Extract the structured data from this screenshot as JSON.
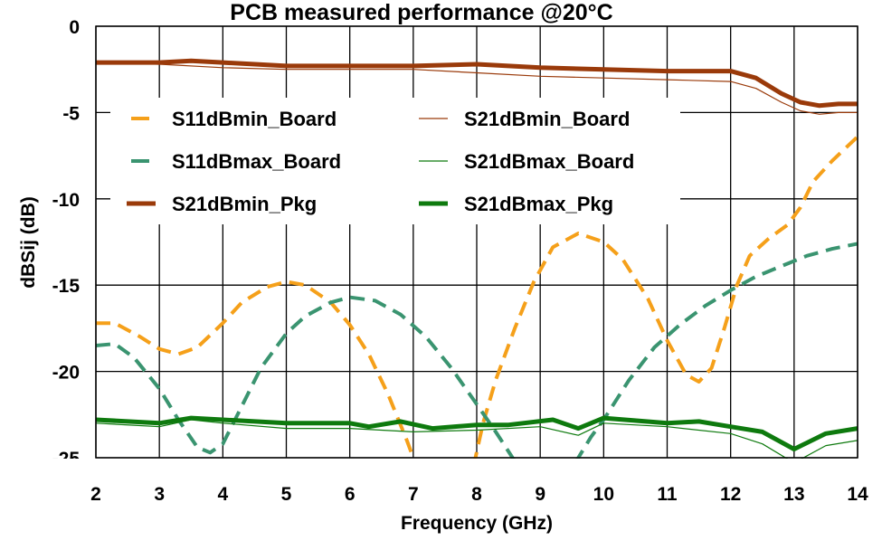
{
  "chart_data": {
    "type": "line",
    "title": "PCB measured performance @20°C",
    "xlabel": "Frequency (GHz)",
    "ylabel": "dBSij (dB)",
    "xlim": [
      2,
      14
    ],
    "ylim": [
      -25,
      0
    ],
    "x_ticks": [
      2,
      3,
      4,
      5,
      6,
      7,
      8,
      9,
      10,
      11,
      12,
      13,
      14
    ],
    "y_ticks": [
      0,
      -5,
      -10,
      -15,
      -20,
      -25
    ],
    "grid": true,
    "legend_position": "upper-left-inside, 2 columns",
    "series": [
      {
        "name": "S11dBmin_Board",
        "color": "#F5A01A",
        "style": "dashed",
        "width": 4,
        "segments": [
          [
            [
              2.0,
              -17.2
            ],
            [
              2.3,
              -17.2
            ],
            [
              2.7,
              -18.0
            ],
            [
              3.0,
              -18.7
            ],
            [
              3.3,
              -19.0
            ],
            [
              3.6,
              -18.6
            ],
            [
              4.0,
              -17.2
            ],
            [
              4.3,
              -16.0
            ],
            [
              4.7,
              -15.1
            ],
            [
              5.0,
              -14.8
            ],
            [
              5.3,
              -15.0
            ],
            [
              5.7,
              -16.0
            ],
            [
              6.0,
              -17.3
            ],
            [
              6.3,
              -19.0
            ],
            [
              6.6,
              -21.3
            ],
            [
              6.9,
              -24.0
            ],
            [
              7.05,
              -25.5
            ]
          ],
          [
            [
              7.95,
              -25.5
            ],
            [
              8.1,
              -23.0
            ],
            [
              8.3,
              -20.5
            ],
            [
              8.6,
              -17.5
            ],
            [
              8.9,
              -14.8
            ],
            [
              9.2,
              -12.8
            ],
            [
              9.6,
              -12.0
            ],
            [
              10.0,
              -12.5
            ],
            [
              10.3,
              -13.5
            ],
            [
              10.7,
              -15.8
            ],
            [
              11.0,
              -18.2
            ],
            [
              11.3,
              -20.2
            ],
            [
              11.5,
              -20.6
            ],
            [
              11.7,
              -19.8
            ],
            [
              11.9,
              -17.5
            ],
            [
              12.1,
              -15.0
            ],
            [
              12.3,
              -13.3
            ],
            [
              12.6,
              -12.3
            ],
            [
              12.9,
              -11.5
            ],
            [
              13.1,
              -10.5
            ],
            [
              13.3,
              -9.0
            ],
            [
              13.6,
              -7.8
            ],
            [
              14.0,
              -6.4
            ]
          ]
        ]
      },
      {
        "name": "S11dBmax_Board",
        "color": "#3A9470",
        "style": "dashed",
        "width": 4,
        "segments": [
          [
            [
              2.0,
              -18.5
            ],
            [
              2.3,
              -18.4
            ],
            [
              2.6,
              -19.2
            ],
            [
              3.0,
              -21.0
            ],
            [
              3.3,
              -22.8
            ],
            [
              3.6,
              -24.4
            ],
            [
              3.8,
              -24.7
            ],
            [
              4.0,
              -24.2
            ],
            [
              4.3,
              -22.0
            ],
            [
              4.6,
              -19.8
            ],
            [
              5.0,
              -17.8
            ],
            [
              5.3,
              -16.8
            ],
            [
              5.7,
              -16.0
            ],
            [
              6.0,
              -15.7
            ],
            [
              6.4,
              -15.9
            ],
            [
              6.8,
              -16.7
            ],
            [
              7.2,
              -18.0
            ],
            [
              7.6,
              -19.8
            ],
            [
              8.0,
              -21.9
            ],
            [
              8.3,
              -23.5
            ],
            [
              8.6,
              -25.2
            ]
          ],
          [
            [
              9.55,
              -25.3
            ],
            [
              9.8,
              -23.8
            ],
            [
              10.0,
              -22.8
            ],
            [
              10.4,
              -20.5
            ],
            [
              10.8,
              -18.6
            ],
            [
              11.2,
              -17.3
            ],
            [
              11.6,
              -16.2
            ],
            [
              12.0,
              -15.3
            ],
            [
              12.4,
              -14.5
            ],
            [
              12.8,
              -13.9
            ],
            [
              13.2,
              -13.3
            ],
            [
              13.6,
              -12.9
            ],
            [
              14.0,
              -12.6
            ]
          ]
        ]
      },
      {
        "name": "S21dBmin_Pkg",
        "color": "#9A3A0A",
        "style": "solid",
        "width": 5,
        "segments": [
          [
            [
              2.0,
              -2.1
            ],
            [
              3.0,
              -2.1
            ],
            [
              3.5,
              -2.0
            ],
            [
              4.0,
              -2.1
            ],
            [
              5.0,
              -2.3
            ],
            [
              6.0,
              -2.3
            ],
            [
              7.0,
              -2.3
            ],
            [
              8.0,
              -2.2
            ],
            [
              9.0,
              -2.4
            ],
            [
              10.0,
              -2.5
            ],
            [
              11.0,
              -2.6
            ],
            [
              12.0,
              -2.6
            ],
            [
              12.4,
              -3.0
            ],
            [
              12.8,
              -3.9
            ],
            [
              13.1,
              -4.4
            ],
            [
              13.4,
              -4.6
            ],
            [
              13.7,
              -4.5
            ],
            [
              14.0,
              -4.5
            ]
          ]
        ]
      },
      {
        "name": "S21dBmin_Board",
        "color": "#9A3A0A",
        "style": "solid",
        "width": 1.2,
        "segments": [
          [
            [
              2.0,
              -2.1
            ],
            [
              3.0,
              -2.2
            ],
            [
              4.0,
              -2.4
            ],
            [
              5.0,
              -2.5
            ],
            [
              6.0,
              -2.5
            ],
            [
              7.0,
              -2.5
            ],
            [
              8.0,
              -2.7
            ],
            [
              9.0,
              -2.9
            ],
            [
              10.0,
              -3.0
            ],
            [
              11.0,
              -3.1
            ],
            [
              12.0,
              -3.2
            ],
            [
              12.4,
              -3.6
            ],
            [
              12.8,
              -4.4
            ],
            [
              13.1,
              -4.9
            ],
            [
              13.4,
              -5.1
            ],
            [
              13.7,
              -5.0
            ],
            [
              14.0,
              -5.0
            ]
          ]
        ]
      },
      {
        "name": "S21dBmax_Pkg",
        "color": "#0E7A0E",
        "style": "solid",
        "width": 5,
        "segments": [
          [
            [
              2.0,
              -22.8
            ],
            [
              3.0,
              -23.0
            ],
            [
              3.5,
              -22.7
            ],
            [
              4.0,
              -22.8
            ],
            [
              5.0,
              -23.0
            ],
            [
              6.0,
              -23.0
            ],
            [
              6.3,
              -23.2
            ],
            [
              6.8,
              -22.9
            ],
            [
              7.3,
              -23.3
            ],
            [
              8.0,
              -23.1
            ],
            [
              8.5,
              -23.1
            ],
            [
              9.2,
              -22.8
            ],
            [
              9.6,
              -23.3
            ],
            [
              10.0,
              -22.7
            ],
            [
              11.0,
              -23.0
            ],
            [
              11.5,
              -22.9
            ],
            [
              12.0,
              -23.2
            ],
            [
              12.5,
              -23.5
            ],
            [
              13.0,
              -24.5
            ],
            [
              13.5,
              -23.6
            ],
            [
              14.0,
              -23.3
            ]
          ]
        ]
      },
      {
        "name": "S21dBmax_Board",
        "color": "#0E7A0E",
        "style": "solid",
        "width": 1.2,
        "segments": [
          [
            [
              2.0,
              -23.0
            ],
            [
              3.0,
              -23.2
            ],
            [
              3.5,
              -22.8
            ],
            [
              4.0,
              -23.0
            ],
            [
              5.0,
              -23.3
            ],
            [
              6.0,
              -23.3
            ],
            [
              7.0,
              -23.5
            ],
            [
              8.0,
              -23.4
            ],
            [
              9.0,
              -23.2
            ],
            [
              9.6,
              -23.7
            ],
            [
              10.0,
              -23.0
            ],
            [
              11.0,
              -23.2
            ],
            [
              12.0,
              -23.6
            ],
            [
              12.5,
              -24.2
            ],
            [
              13.0,
              -25.3
            ],
            [
              13.5,
              -24.3
            ],
            [
              14.0,
              -24.0
            ]
          ]
        ]
      }
    ],
    "legend": [
      {
        "label": "S11dBmin_Board",
        "color": "#F5A01A",
        "width": 4,
        "col": 0,
        "row": 0,
        "short": true
      },
      {
        "label": "S21dBmin_Board",
        "color": "#9A3A0A",
        "width": 1.2,
        "col": 1,
        "row": 0,
        "short": false
      },
      {
        "label": "S11dBmax_Board",
        "color": "#3A9470",
        "width": 4,
        "col": 0,
        "row": 1,
        "short": true
      },
      {
        "label": "S21dBmax_Board",
        "color": "#0E7A0E",
        "width": 1.2,
        "col": 1,
        "row": 1,
        "short": false
      },
      {
        "label": "S21dBmin_Pkg",
        "color": "#9A3A0A",
        "width": 5,
        "col": 0,
        "row": 2,
        "short": false
      },
      {
        "label": "S21dBmax_Pkg",
        "color": "#0E7A0E",
        "width": 5,
        "col": 1,
        "row": 2,
        "short": false
      }
    ]
  }
}
